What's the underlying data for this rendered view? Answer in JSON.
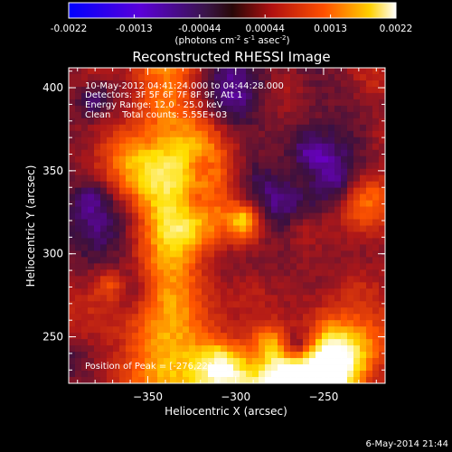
{
  "chart_data": {
    "type": "heatmap",
    "title": "Reconstructed RHESSI Image",
    "xlabel": "Heliocentric X (arcsec)",
    "ylabel": "Heliocentric Y (arcsec)",
    "xlim": [
      -395,
      -215
    ],
    "ylim": [
      222,
      412
    ],
    "xticks": [
      -350,
      -300,
      -250
    ],
    "yticks": [
      250,
      300,
      350,
      400
    ],
    "colorbar": {
      "min": -0.0022,
      "max": 0.0022,
      "ticks": [
        "-0.0022",
        "-0.0013",
        "-0.00044",
        "0.00044",
        "0.0013",
        "0.0022"
      ],
      "label_main": "(photons cm",
      "label_exp1": "-2",
      "label_mid": " s",
      "label_exp2": "-1",
      "label_end": " asec",
      "label_exp3": "-2",
      "label_close": ")"
    },
    "annotations": [
      "10-May-2012 04:41:24.000 to 04:44:28.000",
      "Detectors: 3F 5F 6F 7F 8F 9F, Att 1",
      "Energy Range: 12.0 - 25.0 keV",
      "Clean    Total counts: 5.55E+03"
    ],
    "peak_label": "Position of Peak = [-276,221]",
    "peak": [
      -276,
      221
    ],
    "colormap": [
      "#0000ff",
      "#6a00c8",
      "#3a1040",
      "#b01818",
      "#ff5500",
      "#ffe000",
      "#ffffff"
    ]
  },
  "footer_timestamp": "6-May-2014 21:44"
}
